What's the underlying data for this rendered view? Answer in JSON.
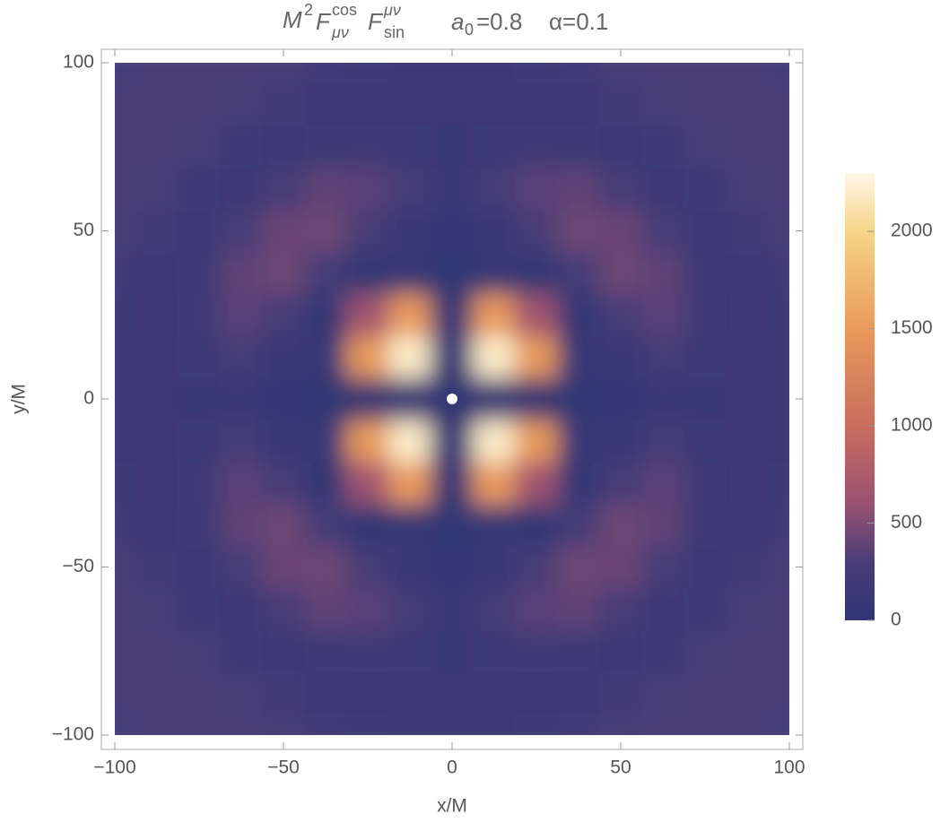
{
  "chart_data": {
    "type": "density",
    "title": [
      "M",
      "2",
      "F",
      "cos",
      "μν",
      "F",
      "μν",
      "sin",
      "a",
      "0",
      "=0.8",
      "α=0.1"
    ],
    "xlabel": "x/M",
    "ylabel": "y/M",
    "x": [
      -100,
      -87.5,
      -75,
      -62.5,
      -50,
      -37.5,
      -25,
      -12.5,
      0,
      12.5,
      25,
      37.5,
      50,
      62.5,
      75,
      87.5,
      100
    ],
    "y": [
      -100,
      -87.5,
      -75,
      -62.5,
      -50,
      -37.5,
      -25,
      -12.5,
      0,
      12.5,
      25,
      37.5,
      50,
      62.5,
      75,
      87.5,
      100
    ],
    "z": [
      [
        250,
        280,
        300,
        300,
        270,
        230,
        180,
        150,
        150,
        150,
        180,
        230,
        270,
        300,
        300,
        280,
        250
      ],
      [
        280,
        300,
        300,
        270,
        220,
        160,
        150,
        150,
        130,
        150,
        150,
        160,
        220,
        270,
        300,
        300,
        280
      ],
      [
        300,
        300,
        260,
        180,
        150,
        170,
        200,
        180,
        120,
        180,
        200,
        170,
        150,
        180,
        260,
        300,
        300
      ],
      [
        300,
        270,
        180,
        150,
        260,
        380,
        360,
        250,
        100,
        250,
        360,
        380,
        260,
        150,
        180,
        270,
        300
      ],
      [
        270,
        220,
        150,
        260,
        420,
        430,
        260,
        110,
        80,
        110,
        260,
        430,
        420,
        260,
        150,
        220,
        270
      ],
      [
        230,
        160,
        170,
        380,
        430,
        250,
        60,
        120,
        60,
        120,
        60,
        250,
        430,
        380,
        170,
        160,
        230
      ],
      [
        180,
        150,
        200,
        360,
        260,
        60,
        650,
        1500,
        40,
        1500,
        650,
        60,
        260,
        360,
        200,
        150,
        180
      ],
      [
        150,
        150,
        180,
        250,
        110,
        120,
        1500,
        2200,
        50,
        2200,
        1500,
        120,
        110,
        250,
        180,
        150,
        150
      ],
      [
        150,
        130,
        120,
        100,
        80,
        60,
        40,
        50,
        0,
        50,
        40,
        60,
        80,
        100,
        120,
        130,
        150
      ],
      [
        150,
        150,
        180,
        250,
        110,
        120,
        1500,
        2200,
        50,
        2200,
        1500,
        120,
        110,
        250,
        180,
        150,
        150
      ],
      [
        180,
        150,
        200,
        360,
        260,
        60,
        650,
        1500,
        40,
        1500,
        650,
        60,
        260,
        360,
        200,
        150,
        180
      ],
      [
        230,
        160,
        170,
        380,
        430,
        250,
        60,
        120,
        60,
        120,
        60,
        250,
        430,
        380,
        170,
        160,
        230
      ],
      [
        270,
        220,
        150,
        260,
        420,
        430,
        260,
        110,
        80,
        110,
        260,
        430,
        420,
        260,
        150,
        220,
        270
      ],
      [
        300,
        270,
        180,
        150,
        260,
        380,
        360,
        250,
        100,
        250,
        360,
        380,
        260,
        150,
        180,
        270,
        300
      ],
      [
        300,
        300,
        260,
        180,
        150,
        170,
        200,
        180,
        120,
        180,
        200,
        170,
        150,
        180,
        260,
        300,
        300
      ],
      [
        280,
        300,
        300,
        270,
        220,
        160,
        150,
        150,
        130,
        150,
        150,
        160,
        220,
        270,
        300,
        300,
        280
      ],
      [
        250,
        280,
        300,
        300,
        270,
        230,
        180,
        150,
        150,
        150,
        180,
        230,
        270,
        300,
        300,
        280,
        250
      ]
    ],
    "xlim": [
      -100,
      100
    ],
    "ylim": [
      -100,
      100
    ],
    "xticks": [
      {
        "value": -100,
        "label": "−100"
      },
      {
        "value": -50,
        "label": "−50"
      },
      0,
      50,
      100
    ],
    "yticks": [
      {
        "value": -100,
        "label": "−100"
      },
      {
        "value": -50,
        "label": "−50"
      },
      0,
      50,
      100
    ],
    "colormap": [
      [
        0,
        "#2d3572"
      ],
      [
        300,
        "#4a3d78"
      ],
      [
        600,
        "#9a5272"
      ],
      [
        1000,
        "#c96d5e"
      ],
      [
        1500,
        "#e99a5c"
      ],
      [
        2000,
        "#f6d48a"
      ],
      [
        2300,
        "#fff8e8"
      ]
    ],
    "zlim": [
      0,
      2300
    ],
    "zticks": [
      0,
      500,
      1000,
      1500,
      2000
    ]
  }
}
